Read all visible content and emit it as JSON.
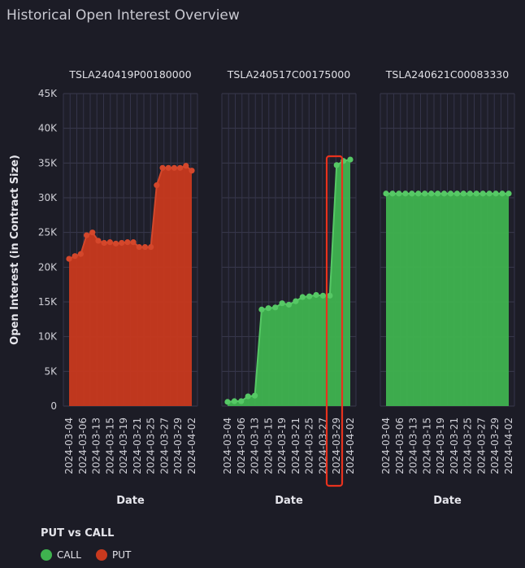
{
  "title": "Historical Open Interest Overview",
  "ylabel": "Open Interest (in Contract Size)",
  "xlabel": "Date",
  "legend": {
    "title": "PUT vs CALL",
    "items": [
      {
        "label": "CALL",
        "color": "#3fb34f"
      },
      {
        "label": "PUT",
        "color": "#c8391e"
      }
    ]
  },
  "chart_data": [
    {
      "type": "area",
      "title": "TSLA240419P00180000",
      "series": [
        {
          "name": "PUT",
          "color": "#c8391e",
          "stroke": "#d4472b",
          "values": [
            21200,
            21600,
            21900,
            24600,
            25000,
            23800,
            23500,
            23600,
            23400,
            23500,
            23600,
            23600,
            22900,
            22900,
            22900,
            31800,
            34300,
            34300,
            34300,
            34300,
            34600,
            33900
          ]
        }
      ],
      "xlabel": "Date",
      "ylabel": "Open Interest (in Contract Size)",
      "ylim": [
        0,
        45000
      ]
    },
    {
      "type": "area",
      "title": "TSLA240517C00175000",
      "series": [
        {
          "name": "CALL",
          "color": "#3fb34f",
          "stroke": "#56c865",
          "values": [
            600,
            700,
            700,
            1400,
            1500,
            13900,
            14100,
            14200,
            14800,
            14600,
            15100,
            15700,
            15800,
            16000,
            15900,
            15900,
            34700,
            35300,
            35500
          ]
        }
      ],
      "xlabel": "Date",
      "ylabel": "Open Interest (in Contract Size)",
      "ylim": [
        0,
        45000
      ]
    },
    {
      "type": "area",
      "title": "TSLA240621C00083330",
      "series": [
        {
          "name": "CALL",
          "color": "#3fb34f",
          "stroke": "#56c865",
          "values": [
            30600,
            30600,
            30600,
            30600,
            30600,
            30600,
            30600,
            30600,
            30600,
            30600,
            30600,
            30600,
            30600,
            30600,
            30600,
            30600,
            30600,
            30600,
            30600,
            30600
          ]
        }
      ],
      "xlabel": "Date",
      "ylabel": "Open Interest (in Contract Size)",
      "ylim": [
        0,
        45000
      ]
    }
  ],
  "x_tick_labels": [
    "2024-03-04",
    "2024-03-06",
    "2024-03-13",
    "2024-03-15",
    "2024-03-19",
    "2024-03-21",
    "2024-03-25",
    "2024-03-27",
    "2024-03-29",
    "2024-04-02"
  ],
  "y_tick_labels": [
    "0",
    "5K",
    "10K",
    "15K",
    "20K",
    "25K",
    "30K",
    "35K",
    "40K",
    "45K"
  ],
  "highlight": {
    "color": "#e8321e"
  }
}
